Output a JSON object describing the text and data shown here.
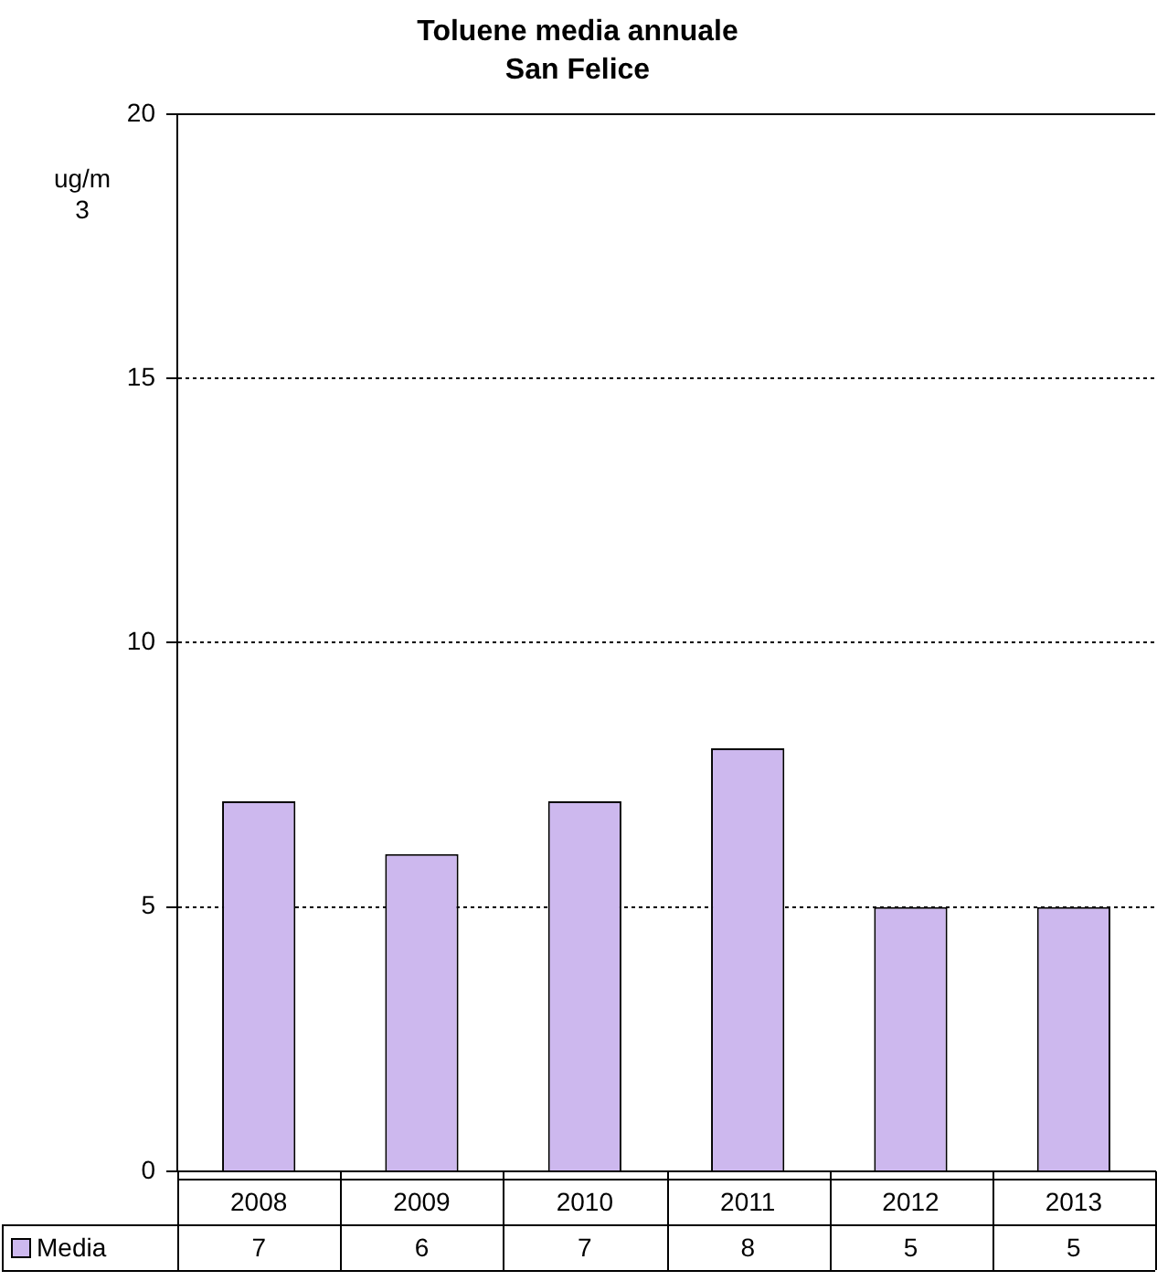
{
  "chart_data": {
    "type": "bar",
    "title": "Toluene media annuale",
    "subtitle": "San Felice",
    "ylabel": "ug/m3",
    "categories": [
      "2008",
      "2009",
      "2010",
      "2011",
      "2012",
      "2013"
    ],
    "series": [
      {
        "name": "Media",
        "color": "#cdb8ee",
        "values": [
          7,
          6,
          7,
          8,
          5,
          5
        ]
      }
    ],
    "ylim": [
      0,
      20
    ],
    "yticks": [
      0,
      5,
      10,
      15,
      20
    ],
    "grid": "y",
    "data_labels": true
  }
}
